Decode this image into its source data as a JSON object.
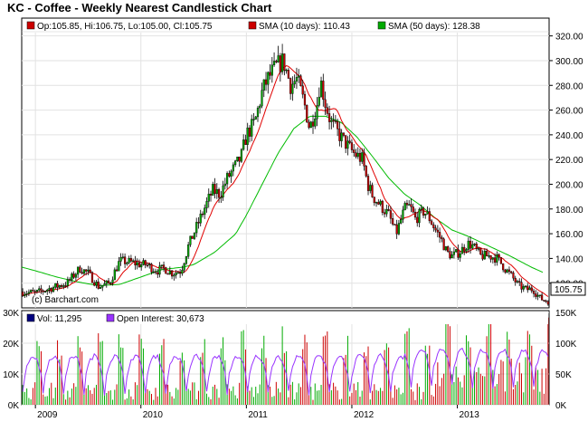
{
  "chart_data": [
    {
      "type": "candlestick",
      "title": "KC - Coffee - Weekly Nearest Candlestick Chart",
      "legend": [
        {
          "label": "Op:105.85, Hi:106.75, Lo:105.00, Cl:105.75",
          "color": "#cc0000"
        },
        {
          "label": "SMA (10 days): 110.43",
          "color": "#cc0000"
        },
        {
          "label": "SMA (50 days): 128.38",
          "color": "#00aa00"
        }
      ],
      "copyright": "(c) Barchart.com",
      "last_price": "105.75",
      "ylim": [
        100,
        330
      ],
      "y_ticks": [
        "100.00",
        "120.00",
        "140.00",
        "160.00",
        "180.00",
        "200.00",
        "220.00",
        "240.00",
        "260.00",
        "280.00",
        "300.00",
        "320.00"
      ],
      "x_ticks": [
        "2009",
        "2010",
        "2011",
        "2012",
        "2013"
      ],
      "x_tick_positions": [
        2009.0,
        2010.0,
        2011.0,
        2012.0,
        2013.0
      ],
      "xlim": [
        2008.87,
        2013.87
      ],
      "price_profile": [
        [
          2008.87,
          113
        ],
        [
          2009.0,
          112
        ],
        [
          2009.15,
          116
        ],
        [
          2009.3,
          120
        ],
        [
          2009.42,
          132
        ],
        [
          2009.5,
          128
        ],
        [
          2009.6,
          117
        ],
        [
          2009.7,
          120
        ],
        [
          2009.8,
          138
        ],
        [
          2009.9,
          137
        ],
        [
          2010.0,
          135
        ],
        [
          2010.05,
          135
        ],
        [
          2010.15,
          130
        ],
        [
          2010.22,
          132
        ],
        [
          2010.3,
          128
        ],
        [
          2010.38,
          130
        ],
        [
          2010.45,
          150
        ],
        [
          2010.55,
          170
        ],
        [
          2010.6,
          180
        ],
        [
          2010.68,
          195
        ],
        [
          2010.75,
          192
        ],
        [
          2010.82,
          205
        ],
        [
          2010.9,
          215
        ],
        [
          2010.95,
          222
        ],
        [
          2011.0,
          240
        ],
        [
          2011.08,
          250
        ],
        [
          2011.15,
          275
        ],
        [
          2011.2,
          285
        ],
        [
          2011.28,
          295
        ],
        [
          2011.35,
          300
        ],
        [
          2011.42,
          280
        ],
        [
          2011.48,
          285
        ],
        [
          2011.55,
          265
        ],
        [
          2011.6,
          245
        ],
        [
          2011.67,
          265
        ],
        [
          2011.7,
          285
        ],
        [
          2011.75,
          265
        ],
        [
          2011.8,
          250
        ],
        [
          2011.88,
          240
        ],
        [
          2011.95,
          232
        ],
        [
          2012.02,
          225
        ],
        [
          2012.1,
          220
        ],
        [
          2012.15,
          200
        ],
        [
          2012.2,
          190
        ],
        [
          2012.28,
          182
        ],
        [
          2012.35,
          175
        ],
        [
          2012.42,
          160
        ],
        [
          2012.5,
          180
        ],
        [
          2012.55,
          182
        ],
        [
          2012.6,
          172
        ],
        [
          2012.68,
          178
        ],
        [
          2012.72,
          175
        ],
        [
          2012.78,
          165
        ],
        [
          2012.85,
          155
        ],
        [
          2012.9,
          145
        ],
        [
          2012.95,
          142
        ],
        [
          2013.02,
          145
        ],
        [
          2013.1,
          152
        ],
        [
          2013.15,
          150
        ],
        [
          2013.22,
          142
        ],
        [
          2013.3,
          142
        ],
        [
          2013.38,
          140
        ],
        [
          2013.45,
          132
        ],
        [
          2013.52,
          125
        ],
        [
          2013.58,
          118
        ],
        [
          2013.65,
          115
        ],
        [
          2013.72,
          115
        ],
        [
          2013.78,
          108
        ],
        [
          2013.83,
          106
        ],
        [
          2013.87,
          105.75
        ]
      ],
      "sma50_profile": [
        [
          2008.87,
          133
        ],
        [
          2009.0,
          130
        ],
        [
          2009.2,
          125
        ],
        [
          2009.4,
          121
        ],
        [
          2009.6,
          118
        ],
        [
          2009.8,
          119
        ],
        [
          2010.0,
          125
        ],
        [
          2010.2,
          131
        ],
        [
          2010.4,
          133
        ],
        [
          2010.5,
          135
        ],
        [
          2010.7,
          145
        ],
        [
          2010.9,
          160
        ],
        [
          2011.0,
          175
        ],
        [
          2011.15,
          200
        ],
        [
          2011.3,
          225
        ],
        [
          2011.45,
          245
        ],
        [
          2011.6,
          255
        ],
        [
          2011.75,
          255
        ],
        [
          2011.9,
          250
        ],
        [
          2012.05,
          238
        ],
        [
          2012.2,
          222
        ],
        [
          2012.35,
          205
        ],
        [
          2012.5,
          192
        ],
        [
          2012.65,
          183
        ],
        [
          2012.8,
          172
        ],
        [
          2012.95,
          163
        ],
        [
          2013.1,
          158
        ],
        [
          2013.3,
          150
        ],
        [
          2013.5,
          142
        ],
        [
          2013.7,
          133
        ],
        [
          2013.82,
          128.38
        ]
      ]
    },
    {
      "type": "bar",
      "legend": [
        {
          "label": "Vol: 11,295",
          "color": "#000080"
        },
        {
          "label": "Open Interest: 30,673",
          "color": "#9933ff"
        }
      ],
      "ylim_left": [
        0,
        30000
      ],
      "y_ticks_left": [
        "0K",
        "10K",
        "20K",
        "30K"
      ],
      "ylim_right": [
        0,
        150000
      ],
      "y_ticks_right": [
        "0K",
        "50K",
        "100K",
        "150K"
      ],
      "x_ticks": [
        "2009",
        "2010",
        "2011",
        "2012",
        "2013"
      ]
    }
  ]
}
